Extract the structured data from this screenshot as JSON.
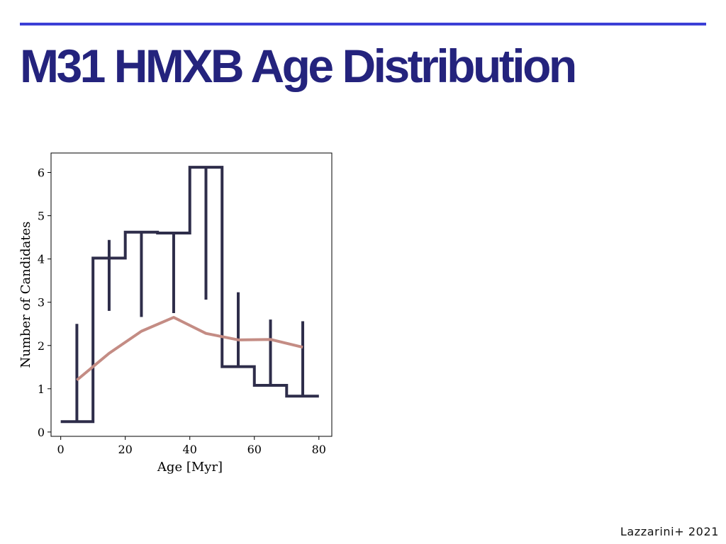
{
  "slide": {
    "title": "M31 HMXB Age Distribution",
    "citation": "Lazzarini+ 2021",
    "accent_color": "#3b3fd6",
    "title_color": "#24237d"
  },
  "chart_data": {
    "type": "line",
    "title": "",
    "xlabel": "Age [Myr]",
    "ylabel": "Number of Candidates",
    "xlim": [
      -3,
      84
    ],
    "ylim": [
      -0.1,
      6.45
    ],
    "xticks": [
      0,
      20,
      40,
      60,
      80
    ],
    "yticks": [
      0,
      1,
      2,
      3,
      4,
      5,
      6
    ],
    "grid": false,
    "series": [
      {
        "kind": "step",
        "color": "#2e2d4a",
        "bin_edges": [
          0,
          10,
          20,
          30,
          40,
          50,
          60,
          70,
          80
        ],
        "values": [
          0.24,
          4.02,
          4.62,
          4.6,
          6.12,
          1.51,
          1.08,
          0.83
        ],
        "errorbars": [
          {
            "x": 5,
            "low": 0.23,
            "high": 2.5
          },
          {
            "x": 15,
            "low": 2.8,
            "high": 4.44
          },
          {
            "x": 25,
            "low": 2.66,
            "high": 4.6
          },
          {
            "x": 35,
            "low": 2.75,
            "high": 4.57
          },
          {
            "x": 45,
            "low": 3.06,
            "high": 6.1
          },
          {
            "x": 55,
            "low": 1.5,
            "high": 3.23
          },
          {
            "x": 65,
            "low": 1.08,
            "high": 2.6
          },
          {
            "x": 75,
            "low": 0.82,
            "high": 2.56
          }
        ]
      },
      {
        "kind": "line",
        "color": "#c48c84",
        "x": [
          5,
          15,
          25,
          35,
          45,
          55,
          65,
          75
        ],
        "y": [
          1.2,
          1.82,
          2.33,
          2.65,
          2.28,
          2.13,
          2.14,
          1.96
        ]
      }
    ]
  }
}
